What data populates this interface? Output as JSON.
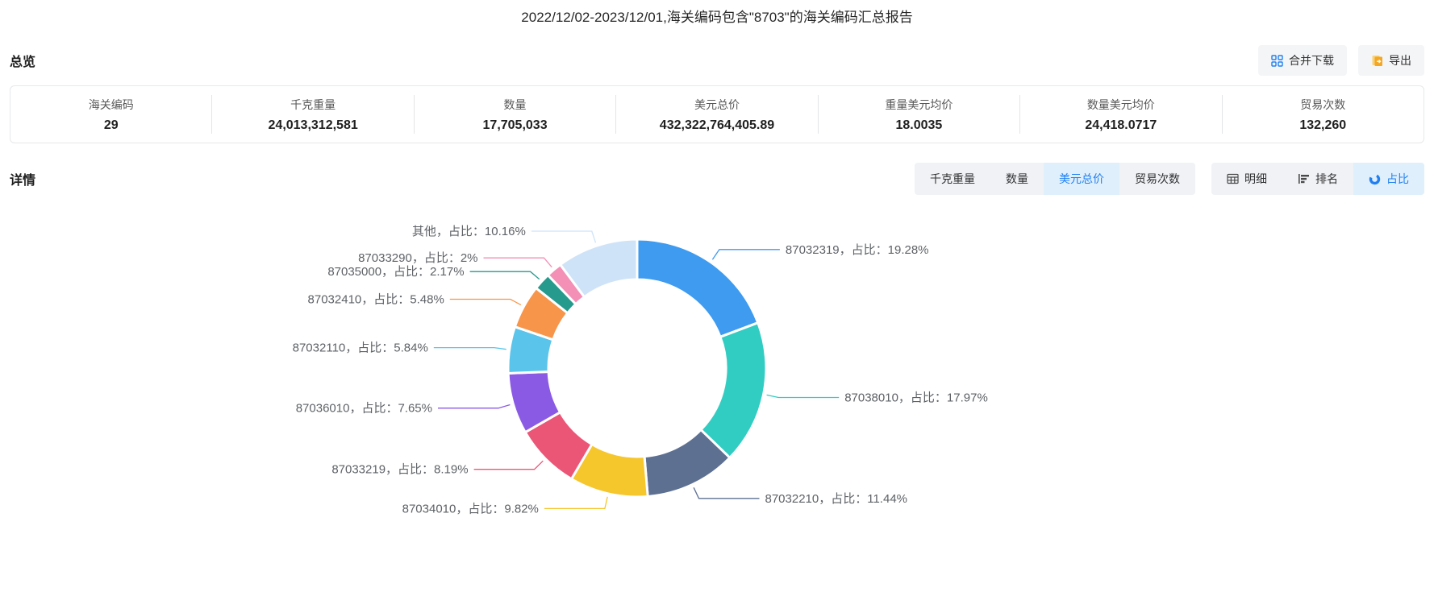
{
  "page_title": "2022/12/02-2023/12/01,海关编码包含\"8703\"的海关编码汇总报告",
  "overview": {
    "section_title": "总览",
    "buttons": [
      {
        "key": "merge-download",
        "label": "合并下载",
        "icon": "merge-download-icon",
        "icon_color": "#2080f0"
      },
      {
        "key": "export",
        "label": "导出",
        "icon": "export-icon",
        "icon_color": "#f5a623"
      }
    ],
    "stats": [
      {
        "key": "hs-code",
        "label": "海关编码",
        "value": "29"
      },
      {
        "key": "kg-weight",
        "label": "千克重量",
        "value": "24,013,312,581"
      },
      {
        "key": "quantity",
        "label": "数量",
        "value": "17,705,033"
      },
      {
        "key": "usd-total",
        "label": "美元总价",
        "value": "432,322,764,405.89"
      },
      {
        "key": "weight-usd-avg",
        "label": "重量美元均价",
        "value": "18.0035"
      },
      {
        "key": "quantity-usd-avg",
        "label": "数量美元均价",
        "value": "24,418.0717"
      },
      {
        "key": "trade-count",
        "label": "贸易次数",
        "value": "132,260"
      }
    ]
  },
  "detail": {
    "section_title": "详情",
    "metric_tabs": [
      {
        "key": "kg-weight",
        "label": "千克重量",
        "active": false
      },
      {
        "key": "quantity",
        "label": "数量",
        "active": false
      },
      {
        "key": "usd-total",
        "label": "美元总价",
        "active": true
      },
      {
        "key": "trade-count",
        "label": "贸易次数",
        "active": false
      }
    ],
    "view_tabs": [
      {
        "key": "detail",
        "label": "明细",
        "icon": "table-icon",
        "active": false
      },
      {
        "key": "ranking",
        "label": "排名",
        "icon": "ranking-icon",
        "active": false
      },
      {
        "key": "proportion",
        "label": "占比",
        "icon": "donut-icon",
        "active": true
      }
    ]
  },
  "colors": {
    "accent": "#2080f0",
    "tab_active_bg": "#e0effc",
    "label_text": "#5e6266"
  },
  "chart_data": {
    "type": "pie",
    "donut": true,
    "title": "",
    "legend_position": "none",
    "label_separator": "，占比：",
    "segments": [
      {
        "name": "87032319",
        "value": 19.28,
        "percent_text": "19.28%",
        "color": "#3E9BF0"
      },
      {
        "name": "87038010",
        "value": 17.97,
        "percent_text": "17.97%",
        "color": "#32CDC2"
      },
      {
        "name": "87032210",
        "value": 11.44,
        "percent_text": "11.44%",
        "color": "#5D7092"
      },
      {
        "name": "87034010",
        "value": 9.82,
        "percent_text": "9.82%",
        "color": "#F6C62D"
      },
      {
        "name": "87033219",
        "value": 8.19,
        "percent_text": "8.19%",
        "color": "#EB5677"
      },
      {
        "name": "87036010",
        "value": 7.65,
        "percent_text": "7.65%",
        "color": "#8B5AE5"
      },
      {
        "name": "87032110",
        "value": 5.84,
        "percent_text": "5.84%",
        "color": "#5BC4EA"
      },
      {
        "name": "87032410",
        "value": 5.48,
        "percent_text": "5.48%",
        "color": "#F7954B"
      },
      {
        "name": "87035000",
        "value": 2.17,
        "percent_text": "2.17%",
        "color": "#259A8D"
      },
      {
        "name": "87033290",
        "value": 2,
        "percent_text": "2%",
        "color": "#F48FB5"
      },
      {
        "name": "其他",
        "value": 10.16,
        "percent_text": "10.16%",
        "color": "#CFE3F8"
      }
    ]
  }
}
